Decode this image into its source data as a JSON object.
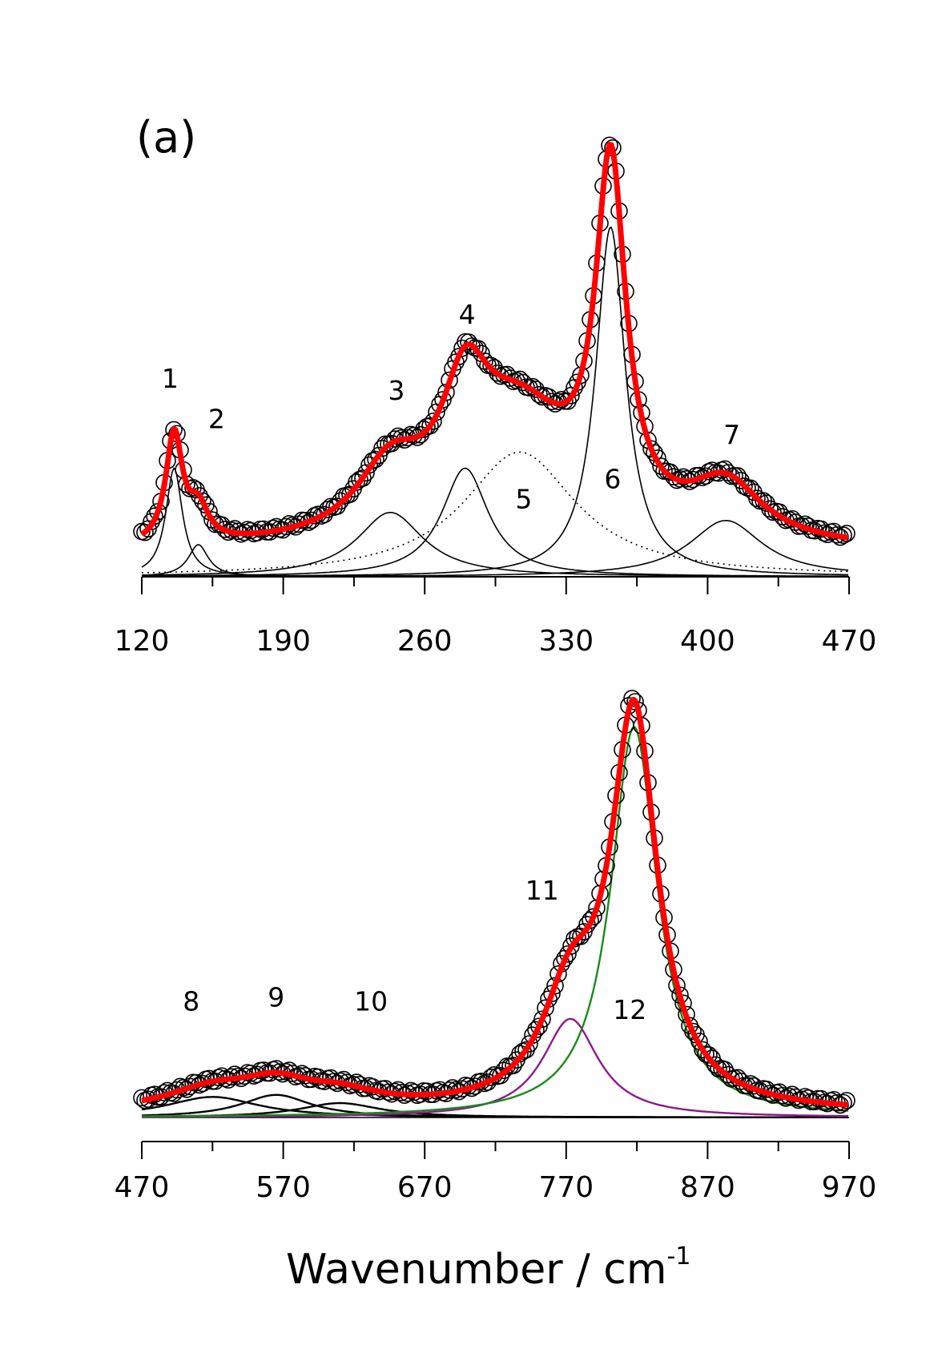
{
  "figure_label": "(a)",
  "xlabel": "Wavenumber / cm",
  "xlabel_sup": "-1",
  "colors": {
    "data": "#000000",
    "fit": "#ff0000",
    "component": "#000000",
    "green": "#1a8a1a",
    "purple": "#8b1a8b"
  },
  "chart_data": [
    {
      "type": "line",
      "panel": "top",
      "title": "",
      "xlabel": "",
      "ylabel": "",
      "xlim": [
        120,
        470
      ],
      "ylim": [
        0,
        1.05
      ],
      "xticks": [
        120,
        190,
        260,
        330,
        400,
        470
      ],
      "grid": false,
      "series": [
        {
          "name": "experimental",
          "style": "open-circles"
        },
        {
          "name": "fit",
          "style": "red-thick-line"
        }
      ],
      "peaks": [
        {
          "label": "1",
          "center": 136,
          "amplitude": 0.27,
          "width": 5,
          "shape": "solid",
          "label_pos": [
            134,
            0.47
          ]
        },
        {
          "label": "2",
          "center": 148,
          "amplitude": 0.08,
          "width": 6,
          "shape": "solid",
          "label_pos": [
            157,
            0.37
          ]
        },
        {
          "label": "3",
          "center": 243,
          "amplitude": 0.16,
          "width": 20,
          "shape": "solid",
          "label_pos": [
            246,
            0.44
          ]
        },
        {
          "label": "4",
          "center": 280,
          "amplitude": 0.27,
          "width": 14,
          "shape": "solid",
          "label_pos": [
            281,
            0.63
          ]
        },
        {
          "label": "5",
          "center": 307,
          "amplitude": 0.31,
          "width": 34,
          "shape": "dotted",
          "label_pos": [
            309,
            0.17
          ]
        },
        {
          "label": "6",
          "center": 352,
          "amplitude": 0.87,
          "width": 9,
          "shape": "solid",
          "label_pos": [
            353,
            0.22
          ]
        },
        {
          "label": "7",
          "center": 409,
          "amplitude": 0.14,
          "width": 22,
          "shape": "solid",
          "label_pos": [
            412,
            0.33
          ]
        }
      ]
    },
    {
      "type": "line",
      "panel": "bottom",
      "title": "",
      "xlabel": "Wavenumber / cm-1",
      "ylabel": "",
      "xlim": [
        470,
        970
      ],
      "ylim": [
        0,
        1.05
      ],
      "xticks": [
        470,
        570,
        670,
        770,
        870,
        970
      ],
      "grid": false,
      "series": [
        {
          "name": "experimental",
          "style": "open-circles"
        },
        {
          "name": "fit",
          "style": "red-thick-line"
        }
      ],
      "peaks": [
        {
          "label": "8",
          "center": 520,
          "amplitude": 0.05,
          "width": 40,
          "shape": "solid",
          "color": "black",
          "label_pos": [
            505,
            0.26
          ]
        },
        {
          "label": "9",
          "center": 565,
          "amplitude": 0.055,
          "width": 30,
          "shape": "solid",
          "color": "black",
          "label_pos": [
            565,
            0.27
          ]
        },
        {
          "label": "10",
          "center": 610,
          "amplitude": 0.035,
          "width": 35,
          "shape": "solid",
          "color": "black",
          "label_pos": [
            632,
            0.26
          ]
        },
        {
          "label": "11",
          "center": 773,
          "amplitude": 0.24,
          "width": 24,
          "shape": "solid",
          "color": "purple",
          "label_pos": [
            753,
            0.53
          ]
        },
        {
          "label": "12",
          "center": 818,
          "amplitude": 0.95,
          "width": 20,
          "shape": "solid",
          "color": "green",
          "label_pos": [
            815,
            0.24
          ]
        }
      ]
    }
  ]
}
